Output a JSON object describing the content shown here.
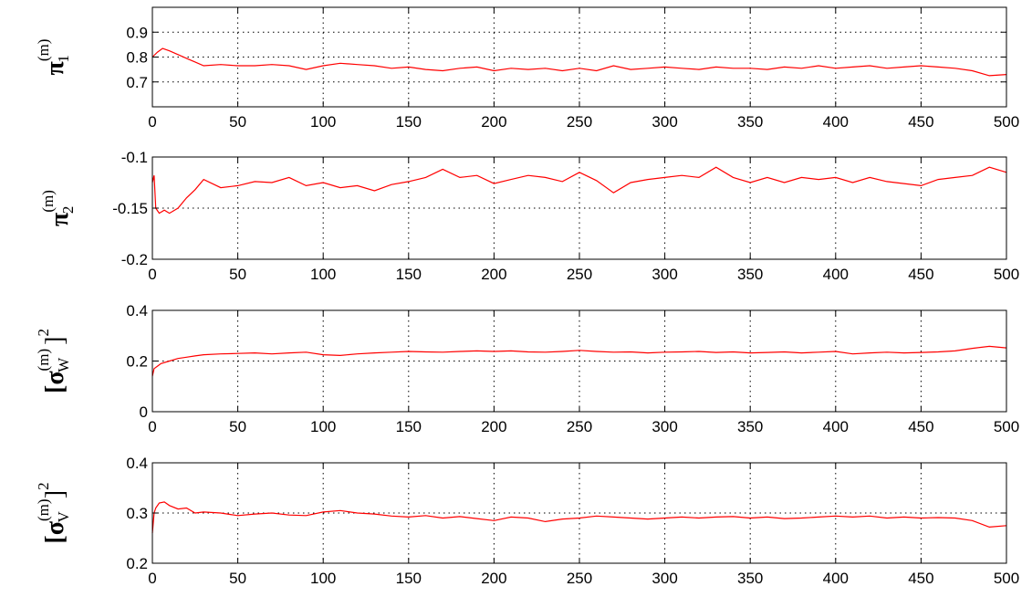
{
  "chart_data": [
    {
      "type": "line",
      "ylabel_main": "π",
      "ylabel_sub": "1",
      "ylabel_sup": "(m)",
      "xlim": [
        0,
        500
      ],
      "ylim": [
        0.6,
        1.0
      ],
      "xticks": [
        0,
        50,
        100,
        150,
        200,
        250,
        300,
        350,
        400,
        450,
        500
      ],
      "yticks": [
        0.7,
        0.8,
        0.9
      ],
      "ytick_labels": [
        "0.7",
        "0.8",
        "0.9"
      ],
      "grid": true,
      "line_color": "#ff0000",
      "x": [
        0,
        3,
        6,
        10,
        15,
        20,
        25,
        30,
        40,
        50,
        60,
        70,
        80,
        90,
        100,
        110,
        120,
        130,
        140,
        150,
        160,
        170,
        180,
        190,
        200,
        210,
        220,
        230,
        240,
        250,
        260,
        270,
        280,
        290,
        300,
        310,
        320,
        330,
        340,
        350,
        360,
        370,
        380,
        390,
        400,
        410,
        420,
        430,
        440,
        450,
        460,
        470,
        480,
        490,
        500
      ],
      "y": [
        0.8,
        0.82,
        0.835,
        0.825,
        0.81,
        0.795,
        0.78,
        0.765,
        0.77,
        0.765,
        0.765,
        0.77,
        0.765,
        0.75,
        0.765,
        0.775,
        0.77,
        0.765,
        0.755,
        0.76,
        0.75,
        0.745,
        0.755,
        0.76,
        0.745,
        0.755,
        0.75,
        0.755,
        0.745,
        0.755,
        0.745,
        0.765,
        0.75,
        0.755,
        0.76,
        0.755,
        0.75,
        0.76,
        0.755,
        0.755,
        0.75,
        0.76,
        0.755,
        0.765,
        0.755,
        0.76,
        0.765,
        0.755,
        0.76,
        0.765,
        0.76,
        0.755,
        0.745,
        0.725,
        0.73
      ]
    },
    {
      "type": "line",
      "ylabel_main": "π",
      "ylabel_sub": "2",
      "ylabel_sup": "(m)",
      "xlim": [
        0,
        500
      ],
      "ylim": [
        -0.2,
        -0.1
      ],
      "xticks": [
        0,
        50,
        100,
        150,
        200,
        250,
        300,
        350,
        400,
        450,
        500
      ],
      "yticks": [
        -0.2,
        -0.15,
        -0.1
      ],
      "ytick_labels": [
        "-0.2",
        "-0.15",
        "-0.1"
      ],
      "grid": true,
      "line_color": "#ff0000",
      "x": [
        0,
        1,
        2,
        4,
        7,
        10,
        15,
        20,
        25,
        30,
        40,
        50,
        60,
        70,
        80,
        90,
        100,
        110,
        120,
        130,
        140,
        150,
        160,
        170,
        180,
        190,
        200,
        210,
        220,
        230,
        240,
        250,
        260,
        270,
        280,
        290,
        300,
        310,
        320,
        330,
        340,
        350,
        360,
        370,
        380,
        390,
        400,
        410,
        420,
        430,
        440,
        450,
        460,
        470,
        480,
        490,
        500
      ],
      "y": [
        -0.125,
        -0.118,
        -0.15,
        -0.155,
        -0.152,
        -0.155,
        -0.15,
        -0.14,
        -0.132,
        -0.122,
        -0.13,
        -0.128,
        -0.124,
        -0.125,
        -0.12,
        -0.128,
        -0.125,
        -0.13,
        -0.128,
        -0.133,
        -0.127,
        -0.124,
        -0.12,
        -0.112,
        -0.12,
        -0.118,
        -0.126,
        -0.122,
        -0.118,
        -0.12,
        -0.124,
        -0.115,
        -0.123,
        -0.135,
        -0.125,
        -0.122,
        -0.12,
        -0.118,
        -0.12,
        -0.11,
        -0.12,
        -0.125,
        -0.12,
        -0.125,
        -0.12,
        -0.122,
        -0.12,
        -0.125,
        -0.12,
        -0.124,
        -0.126,
        -0.128,
        -0.122,
        -0.12,
        -0.118,
        -0.11,
        -0.115
      ]
    },
    {
      "type": "line",
      "ylabel_main": "[σ",
      "ylabel_sub": "W",
      "ylabel_sup": "(m)",
      "ylabel_tail": "]",
      "ylabel_tail_sup": "2",
      "xlim": [
        0,
        500
      ],
      "ylim": [
        0,
        0.4
      ],
      "xticks": [
        0,
        50,
        100,
        150,
        200,
        250,
        300,
        350,
        400,
        450,
        500
      ],
      "yticks": [
        0,
        0.2,
        0.4
      ],
      "ytick_labels": [
        "0",
        "0.2",
        "0.4"
      ],
      "grid": true,
      "line_color": "#ff0000",
      "x": [
        0,
        1,
        3,
        5,
        10,
        15,
        20,
        25,
        30,
        40,
        50,
        60,
        70,
        80,
        90,
        100,
        110,
        120,
        130,
        140,
        150,
        160,
        170,
        180,
        190,
        200,
        210,
        220,
        230,
        240,
        250,
        260,
        270,
        280,
        290,
        300,
        310,
        320,
        330,
        340,
        350,
        360,
        370,
        380,
        390,
        400,
        410,
        420,
        430,
        440,
        450,
        460,
        470,
        480,
        490,
        500
      ],
      "y": [
        0.14,
        0.17,
        0.18,
        0.19,
        0.2,
        0.21,
        0.215,
        0.22,
        0.225,
        0.228,
        0.23,
        0.232,
        0.228,
        0.232,
        0.235,
        0.225,
        0.222,
        0.228,
        0.232,
        0.235,
        0.238,
        0.236,
        0.235,
        0.238,
        0.24,
        0.238,
        0.24,
        0.236,
        0.235,
        0.238,
        0.242,
        0.238,
        0.235,
        0.236,
        0.232,
        0.235,
        0.236,
        0.238,
        0.234,
        0.236,
        0.232,
        0.234,
        0.236,
        0.232,
        0.235,
        0.238,
        0.228,
        0.232,
        0.235,
        0.232,
        0.234,
        0.236,
        0.24,
        0.25,
        0.258,
        0.252
      ]
    },
    {
      "type": "line",
      "ylabel_main": "[σ",
      "ylabel_sub": "V",
      "ylabel_sup": "(m)",
      "ylabel_tail": "]",
      "ylabel_tail_sup": "2",
      "xlim": [
        0,
        500
      ],
      "ylim": [
        0.2,
        0.4
      ],
      "xticks": [
        0,
        50,
        100,
        150,
        200,
        250,
        300,
        350,
        400,
        450,
        500
      ],
      "yticks": [
        0.2,
        0.3,
        0.4
      ],
      "ytick_labels": [
        "0.2",
        "0.3",
        "0.4"
      ],
      "grid": true,
      "line_color": "#ff0000",
      "x": [
        0,
        1,
        2,
        4,
        7,
        10,
        15,
        20,
        25,
        30,
        40,
        50,
        60,
        70,
        80,
        90,
        100,
        110,
        120,
        130,
        140,
        150,
        160,
        170,
        180,
        190,
        200,
        210,
        220,
        230,
        240,
        250,
        260,
        270,
        280,
        290,
        300,
        310,
        320,
        330,
        340,
        350,
        360,
        370,
        380,
        390,
        400,
        410,
        420,
        430,
        440,
        450,
        460,
        470,
        480,
        490,
        500
      ],
      "y": [
        0.26,
        0.3,
        0.31,
        0.32,
        0.322,
        0.315,
        0.308,
        0.31,
        0.3,
        0.302,
        0.3,
        0.295,
        0.298,
        0.3,
        0.296,
        0.295,
        0.302,
        0.305,
        0.3,
        0.298,
        0.294,
        0.292,
        0.295,
        0.29,
        0.293,
        0.289,
        0.285,
        0.292,
        0.29,
        0.283,
        0.288,
        0.29,
        0.294,
        0.292,
        0.29,
        0.288,
        0.29,
        0.292,
        0.29,
        0.292,
        0.293,
        0.29,
        0.292,
        0.289,
        0.29,
        0.292,
        0.294,
        0.292,
        0.294,
        0.29,
        0.292,
        0.29,
        0.291,
        0.29,
        0.285,
        0.272,
        0.275
      ]
    }
  ]
}
